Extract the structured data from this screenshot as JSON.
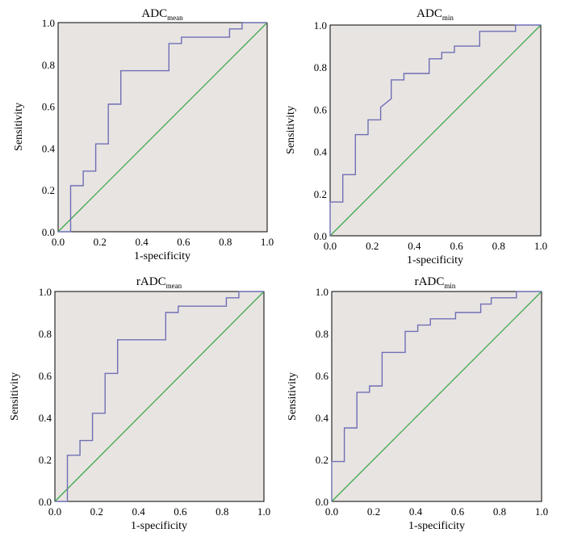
{
  "colors": {
    "roc_curve": "#6f6fb4",
    "reference_line": "#3ea84b",
    "plot_background": "#e8e4e2"
  },
  "chart_data": [
    {
      "type": "line",
      "title": "ADC",
      "title_subscript": "mean",
      "xlabel": "1-specificity",
      "ylabel": "Sensitivity",
      "xlim": [
        0,
        1.0
      ],
      "ylim": [
        0,
        1.0
      ],
      "x_ticks": [
        "0.0",
        "0.2",
        "0.4",
        "0.6",
        "0.8",
        "1.0"
      ],
      "y_ticks": [
        "0.0",
        "0.2",
        "0.4",
        "0.6",
        "0.8",
        "1.0"
      ],
      "series": [
        {
          "name": "ROC",
          "x": [
            0,
            0.06,
            0.06,
            0.12,
            0.12,
            0.18,
            0.18,
            0.24,
            0.24,
            0.3,
            0.3,
            0.53,
            0.53,
            0.59,
            0.59,
            0.82,
            0.82,
            0.88,
            0.88,
            1.0
          ],
          "y": [
            0,
            0,
            0.22,
            0.22,
            0.29,
            0.29,
            0.42,
            0.42,
            0.61,
            0.61,
            0.77,
            0.77,
            0.9,
            0.9,
            0.93,
            0.93,
            0.97,
            0.97,
            1.0,
            1.0
          ]
        },
        {
          "name": "Reference",
          "x": [
            0,
            1
          ],
          "y": [
            0,
            1
          ]
        }
      ]
    },
    {
      "type": "line",
      "title": "ADC",
      "title_subscript": "min",
      "xlabel": "1-specificity",
      "ylabel": "Sensitivity",
      "xlim": [
        0,
        1.0
      ],
      "ylim": [
        0,
        1.0
      ],
      "x_ticks": [
        "0.0",
        "0.2",
        "0.4",
        "0.6",
        "0.8",
        "1.0"
      ],
      "y_ticks": [
        "0.0",
        "0.2",
        "0.4",
        "0.6",
        "0.8",
        "1.0"
      ],
      "series": [
        {
          "name": "ROC",
          "x": [
            0,
            0,
            0.06,
            0.06,
            0.12,
            0.12,
            0.18,
            0.18,
            0.24,
            0.24,
            0.29,
            0.29,
            0.35,
            0.35,
            0.47,
            0.47,
            0.53,
            0.53,
            0.59,
            0.59,
            0.71,
            0.71,
            0.88,
            0.88,
            1.0
          ],
          "y": [
            0,
            0.16,
            0.16,
            0.29,
            0.29,
            0.48,
            0.48,
            0.55,
            0.55,
            0.61,
            0.65,
            0.74,
            0.74,
            0.77,
            0.77,
            0.84,
            0.84,
            0.87,
            0.87,
            0.9,
            0.9,
            0.97,
            0.97,
            1.0,
            1.0
          ]
        },
        {
          "name": "Reference",
          "x": [
            0,
            1
          ],
          "y": [
            0,
            1
          ]
        }
      ]
    },
    {
      "type": "line",
      "title": "rADC",
      "title_subscript": "mean",
      "xlabel": "1-specificity",
      "ylabel": "Sensitivity",
      "xlim": [
        0,
        1.0
      ],
      "ylim": [
        0,
        1.0
      ],
      "x_ticks": [
        "0.0",
        "0.2",
        "0.4",
        "0.6",
        "0.8",
        "1.0"
      ],
      "y_ticks": [
        "0.0",
        "0.2",
        "0.4",
        "0.6",
        "0.8",
        "1.0"
      ],
      "series": [
        {
          "name": "ROC",
          "x": [
            0,
            0.06,
            0.06,
            0.12,
            0.12,
            0.18,
            0.18,
            0.24,
            0.24,
            0.3,
            0.3,
            0.53,
            0.53,
            0.59,
            0.59,
            0.82,
            0.82,
            0.88,
            0.88,
            1.0
          ],
          "y": [
            0,
            0,
            0.22,
            0.22,
            0.29,
            0.29,
            0.42,
            0.42,
            0.61,
            0.61,
            0.77,
            0.77,
            0.9,
            0.9,
            0.93,
            0.93,
            0.97,
            0.97,
            1.0,
            1.0
          ]
        },
        {
          "name": "Reference",
          "x": [
            0,
            1
          ],
          "y": [
            0,
            1
          ]
        }
      ]
    },
    {
      "type": "line",
      "title": "rADC",
      "title_subscript": "min",
      "xlabel": "1-specificity",
      "ylabel": "Sensitivity",
      "xlim": [
        0,
        1.0
      ],
      "ylim": [
        0,
        1.0
      ],
      "x_ticks": [
        "0.0",
        "0.2",
        "0.4",
        "0.6",
        "0.8",
        "1.0"
      ],
      "y_ticks": [
        "0.0",
        "0.2",
        "0.4",
        "0.6",
        "0.8",
        "1.0"
      ],
      "series": [
        {
          "name": "ROC",
          "x": [
            0,
            0,
            0.06,
            0.06,
            0.12,
            0.12,
            0.18,
            0.18,
            0.24,
            0.24,
            0.35,
            0.35,
            0.41,
            0.41,
            0.47,
            0.47,
            0.59,
            0.59,
            0.71,
            0.71,
            0.76,
            0.76,
            0.88,
            0.88,
            1.0
          ],
          "y": [
            0,
            0.19,
            0.19,
            0.35,
            0.35,
            0.52,
            0.52,
            0.55,
            0.55,
            0.71,
            0.71,
            0.81,
            0.81,
            0.84,
            0.84,
            0.87,
            0.87,
            0.9,
            0.9,
            0.94,
            0.94,
            0.97,
            0.97,
            1.0,
            1.0
          ]
        },
        {
          "name": "Reference",
          "x": [
            0,
            1
          ],
          "y": [
            0,
            1
          ]
        }
      ]
    }
  ]
}
